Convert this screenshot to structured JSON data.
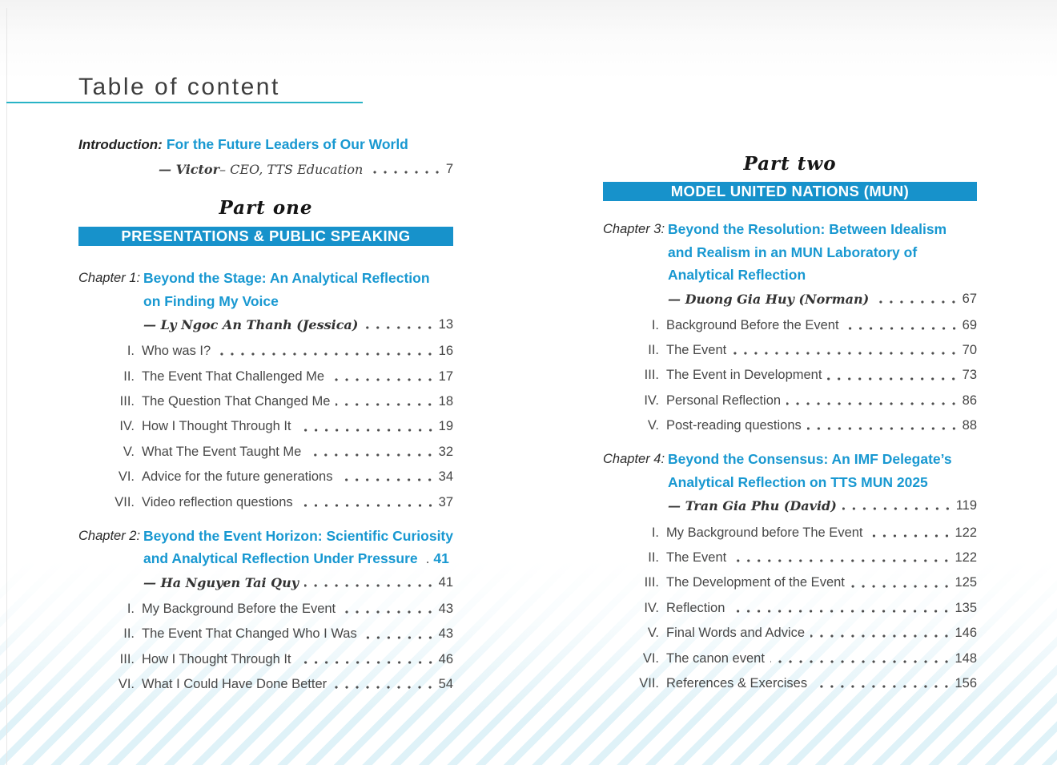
{
  "page_title": "Table of content",
  "intro": {
    "label": "Introduction:",
    "title": "For the Future Leaders of Our World",
    "author_name": "— Victor",
    "author_suffix": " – CEO, TTS Education",
    "page": "7"
  },
  "colors": {
    "banner_blue": "#1792cb",
    "heading_blue": "#1898d1",
    "underline_teal": "#29b3c6",
    "stripe_blue": "#d8edf5",
    "body_text": "#474747"
  },
  "parts": [
    {
      "name": "Part one",
      "banner": "PRESENTATIONS & PUBLIC SPEAKING",
      "chapters": [
        {
          "label": "Chapter 1:",
          "title_lines": [
            "Beyond the Stage: An Analytical Reflection",
            "on Finding My Voice"
          ],
          "title_page": "",
          "author": "— Ly Ngoc An Thanh (Jessica)",
          "author_page": "13",
          "items": [
            {
              "num": "I.",
              "text": "Who was I?",
              "page": "16"
            },
            {
              "num": "II.",
              "text": "The Event That Challenged Me",
              "page": "17"
            },
            {
              "num": "III.",
              "text": "The Question That Changed Me",
              "page": "18"
            },
            {
              "num": "IV.",
              "text": "How I Thought Through It",
              "page": "19"
            },
            {
              "num": "V.",
              "text": "What The Event Taught Me",
              "page": "32"
            },
            {
              "num": "VI.",
              "text": "Advice for the future generations",
              "page": "34"
            },
            {
              "num": "VII.",
              "text": "Video reflection questions",
              "page": "37"
            }
          ]
        },
        {
          "label": "Chapter 2:",
          "title_lines": [
            "Beyond the Event Horizon: Scientific Curiosity",
            "and Analytical Reflection Under Pressure"
          ],
          "title_page": "41",
          "author": "— Ha Nguyen Tai Quy",
          "author_page": "41",
          "items": [
            {
              "num": "I.",
              "text": "My Background Before the Event",
              "page": "43"
            },
            {
              "num": "II.",
              "text": "The Event That Changed Who I Was",
              "page": "43"
            },
            {
              "num": "III.",
              "text": "How I Thought Through It",
              "page": "46"
            },
            {
              "num": "VI.",
              "text": "What I Could Have Done Better",
              "page": "54"
            }
          ]
        }
      ]
    },
    {
      "name": "Part two",
      "banner": "MODEL UNITED NATIONS (MUN)",
      "chapters": [
        {
          "label": "Chapter 3:",
          "title_lines": [
            "Beyond the Resolution: Between Idealism",
            "and Realism in an MUN Laboratory of",
            "Analytical Reflection"
          ],
          "title_page": "",
          "author": "— Duong Gia Huy (Norman)",
          "author_page": "67",
          "items": [
            {
              "num": "I.",
              "text": "Background Before the Event",
              "page": "69"
            },
            {
              "num": "II.",
              "text": "The Event",
              "page": "70"
            },
            {
              "num": "III.",
              "text": "The Event in Development",
              "page": "73"
            },
            {
              "num": "IV.",
              "text": "Personal Reflection",
              "page": "86"
            },
            {
              "num": "V.",
              "text": "Post-reading questions",
              "page": "88"
            }
          ]
        },
        {
          "label": "Chapter 4:",
          "title_lines": [
            "Beyond the Consensus: An IMF Delegate’s",
            "Analytical Reflection on TTS MUN 2025"
          ],
          "title_page": "",
          "author": "— Tran Gia Phu (David)",
          "author_page": "119",
          "items": [
            {
              "num": "I.",
              "text": "My Background before The Event",
              "page": "122"
            },
            {
              "num": "II.",
              "text": "The Event",
              "page": "122"
            },
            {
              "num": "III.",
              "text": "The Development of the Event",
              "page": "125"
            },
            {
              "num": "IV.",
              "text": "Reflection",
              "page": "135"
            },
            {
              "num": "V.",
              "text": "Final Words and Advice",
              "page": "146"
            },
            {
              "num": "VI.",
              "text": "The canon event",
              "page": "148"
            },
            {
              "num": "VII.",
              "text": "References & Exercises",
              "page": "156"
            }
          ]
        }
      ]
    }
  ]
}
